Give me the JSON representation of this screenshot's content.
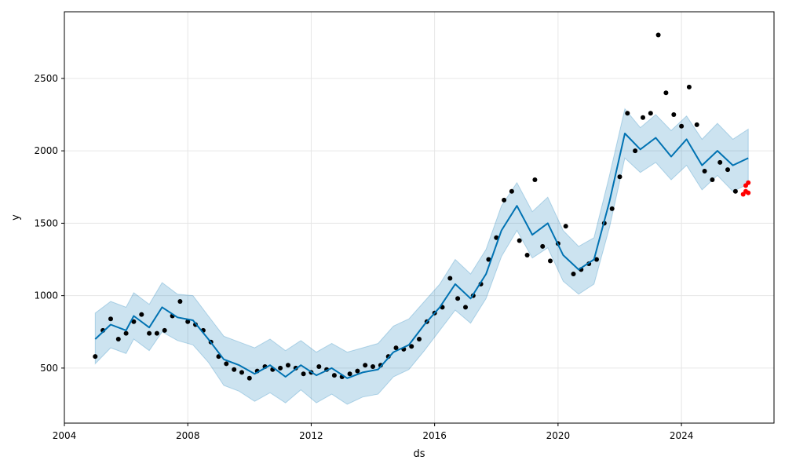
{
  "chart_data": {
    "type": "line",
    "title": "",
    "xlabel": "ds",
    "ylabel": "y",
    "x_range": [
      "2004-01-01",
      "2027-01-01"
    ],
    "ylim": [
      120,
      2960
    ],
    "grid": true,
    "x_ticks": [
      "2004",
      "2008",
      "2012",
      "2016",
      "2020",
      "2024"
    ],
    "y_ticks": [
      500,
      1000,
      1500,
      2000,
      2500
    ],
    "colors": {
      "forecast_line": "#0072b2",
      "uncertainty_band": "#0072b2",
      "observed_points": "#000000",
      "test_points": "#ff0000",
      "grid": "#e6e6e6"
    },
    "series": [
      {
        "key": "forecast",
        "kind": "line",
        "x": [
          "2005-01",
          "2005-07",
          "2006-01",
          "2006-04",
          "2006-10",
          "2007-03",
          "2007-09",
          "2008-03",
          "2008-09",
          "2009-03",
          "2009-09",
          "2010-03",
          "2010-09",
          "2011-03",
          "2011-09",
          "2012-03",
          "2012-09",
          "2013-03",
          "2013-09",
          "2014-03",
          "2014-09",
          "2015-03",
          "2015-09",
          "2016-03",
          "2016-09",
          "2017-03",
          "2017-09",
          "2018-03",
          "2018-09",
          "2019-03",
          "2019-09",
          "2020-03",
          "2020-09",
          "2021-03",
          "2021-09",
          "2022-03",
          "2022-09",
          "2023-03",
          "2023-09",
          "2024-03",
          "2024-09",
          "2025-03",
          "2025-09",
          "2026-03"
        ],
        "y": [
          700,
          800,
          760,
          860,
          780,
          920,
          850,
          830,
          700,
          560,
          520,
          460,
          520,
          440,
          520,
          450,
          500,
          430,
          470,
          490,
          610,
          660,
          800,
          920,
          1080,
          980,
          1150,
          1450,
          1620,
          1420,
          1500,
          1280,
          1180,
          1250,
          1650,
          2120,
          2010,
          2090,
          1960,
          2080,
          1900,
          2000,
          1900,
          1950
        ]
      },
      {
        "key": "forecast_upper",
        "kind": "band-upper",
        "x": [
          "2005-01",
          "2005-07",
          "2006-01",
          "2006-04",
          "2006-10",
          "2007-03",
          "2007-09",
          "2008-03",
          "2008-09",
          "2009-03",
          "2009-09",
          "2010-03",
          "2010-09",
          "2011-03",
          "2011-09",
          "2012-03",
          "2012-09",
          "2013-03",
          "2013-09",
          "2014-03",
          "2014-09",
          "2015-03",
          "2015-09",
          "2016-03",
          "2016-09",
          "2017-03",
          "2017-09",
          "2018-03",
          "2018-09",
          "2019-03",
          "2019-09",
          "2020-03",
          "2020-09",
          "2021-03",
          "2021-09",
          "2022-03",
          "2022-09",
          "2023-03",
          "2023-09",
          "2024-03",
          "2024-09",
          "2025-03",
          "2025-09",
          "2026-03"
        ],
        "y": [
          880,
          960,
          920,
          1020,
          940,
          1090,
          1010,
          1000,
          860,
          720,
          680,
          640,
          700,
          620,
          690,
          610,
          670,
          610,
          640,
          670,
          790,
          840,
          960,
          1080,
          1250,
          1150,
          1320,
          1620,
          1780,
          1580,
          1680,
          1450,
          1340,
          1400,
          1830,
          2290,
          2160,
          2250,
          2140,
          2240,
          2080,
          2190,
          2080,
          2150
        ]
      },
      {
        "key": "forecast_lower",
        "kind": "band-lower",
        "x": [
          "2005-01",
          "2005-07",
          "2006-01",
          "2006-04",
          "2006-10",
          "2007-03",
          "2007-09",
          "2008-03",
          "2008-09",
          "2009-03",
          "2009-09",
          "2010-03",
          "2010-09",
          "2011-03",
          "2011-09",
          "2012-03",
          "2012-09",
          "2013-03",
          "2013-09",
          "2014-03",
          "2014-09",
          "2015-03",
          "2015-09",
          "2016-03",
          "2016-09",
          "2017-03",
          "2017-09",
          "2018-03",
          "2018-09",
          "2019-03",
          "2019-09",
          "2020-03",
          "2020-09",
          "2021-03",
          "2021-09",
          "2022-03",
          "2022-09",
          "2023-03",
          "2023-09",
          "2024-03",
          "2024-09",
          "2025-03",
          "2025-09",
          "2026-03"
        ],
        "y": [
          530,
          640,
          600,
          700,
          620,
          750,
          690,
          660,
          540,
          380,
          340,
          270,
          330,
          260,
          350,
          260,
          320,
          250,
          300,
          320,
          440,
          490,
          620,
          760,
          900,
          810,
          980,
          1270,
          1450,
          1260,
          1330,
          1100,
          1010,
          1080,
          1470,
          1950,
          1850,
          1920,
          1800,
          1900,
          1730,
          1830,
          1720,
          1770
        ]
      },
      {
        "key": "observed",
        "kind": "scatter",
        "x": [
          "2005-01",
          "2005-04",
          "2005-07",
          "2005-10",
          "2006-01",
          "2006-04",
          "2006-07",
          "2006-10",
          "2007-01",
          "2007-04",
          "2007-07",
          "2007-10",
          "2008-01",
          "2008-04",
          "2008-07",
          "2008-10",
          "2009-01",
          "2009-04",
          "2009-07",
          "2009-10",
          "2010-01",
          "2010-04",
          "2010-07",
          "2010-10",
          "2011-01",
          "2011-04",
          "2011-07",
          "2011-10",
          "2012-01",
          "2012-04",
          "2012-07",
          "2012-10",
          "2013-01",
          "2013-04",
          "2013-07",
          "2013-10",
          "2014-01",
          "2014-04",
          "2014-07",
          "2014-10",
          "2015-01",
          "2015-04",
          "2015-07",
          "2015-10",
          "2016-01",
          "2016-04",
          "2016-07",
          "2016-10",
          "2017-01",
          "2017-04",
          "2017-07",
          "2017-10",
          "2018-01",
          "2018-04",
          "2018-07",
          "2018-10",
          "2019-01",
          "2019-04",
          "2019-07",
          "2019-10",
          "2020-01",
          "2020-04",
          "2020-07",
          "2020-10",
          "2021-01",
          "2021-04",
          "2021-07",
          "2021-10",
          "2022-01",
          "2022-04",
          "2022-07",
          "2022-10",
          "2023-01",
          "2023-04",
          "2023-07",
          "2023-10",
          "2024-01",
          "2024-04",
          "2024-07",
          "2024-10",
          "2025-01",
          "2025-04",
          "2025-07",
          "2025-10"
        ],
        "y": [
          580,
          760,
          840,
          700,
          740,
          820,
          870,
          740,
          740,
          760,
          860,
          960,
          820,
          800,
          760,
          680,
          580,
          530,
          490,
          470,
          430,
          480,
          510,
          490,
          500,
          520,
          500,
          460,
          470,
          510,
          490,
          450,
          440,
          460,
          480,
          520,
          510,
          520,
          580,
          640,
          630,
          650,
          700,
          820,
          880,
          920,
          1120,
          980,
          920,
          1000,
          1080,
          1250,
          1400,
          1660,
          1720,
          1380,
          1280,
          1800,
          1340,
          1240,
          1360,
          1480,
          1150,
          1180,
          1220,
          1250,
          1500,
          1600,
          1820,
          2260,
          2000,
          2230,
          2260,
          2800,
          2400,
          2250,
          2170,
          2440,
          2180,
          1860,
          1800,
          1920,
          1870,
          1720
        ]
      },
      {
        "key": "test",
        "kind": "scatter",
        "x": [
          "2026-01",
          "2026-02",
          "2026-02",
          "2026-03",
          "2026-03"
        ],
        "y": [
          1700,
          1760,
          1720,
          1780,
          1710
        ]
      }
    ]
  }
}
